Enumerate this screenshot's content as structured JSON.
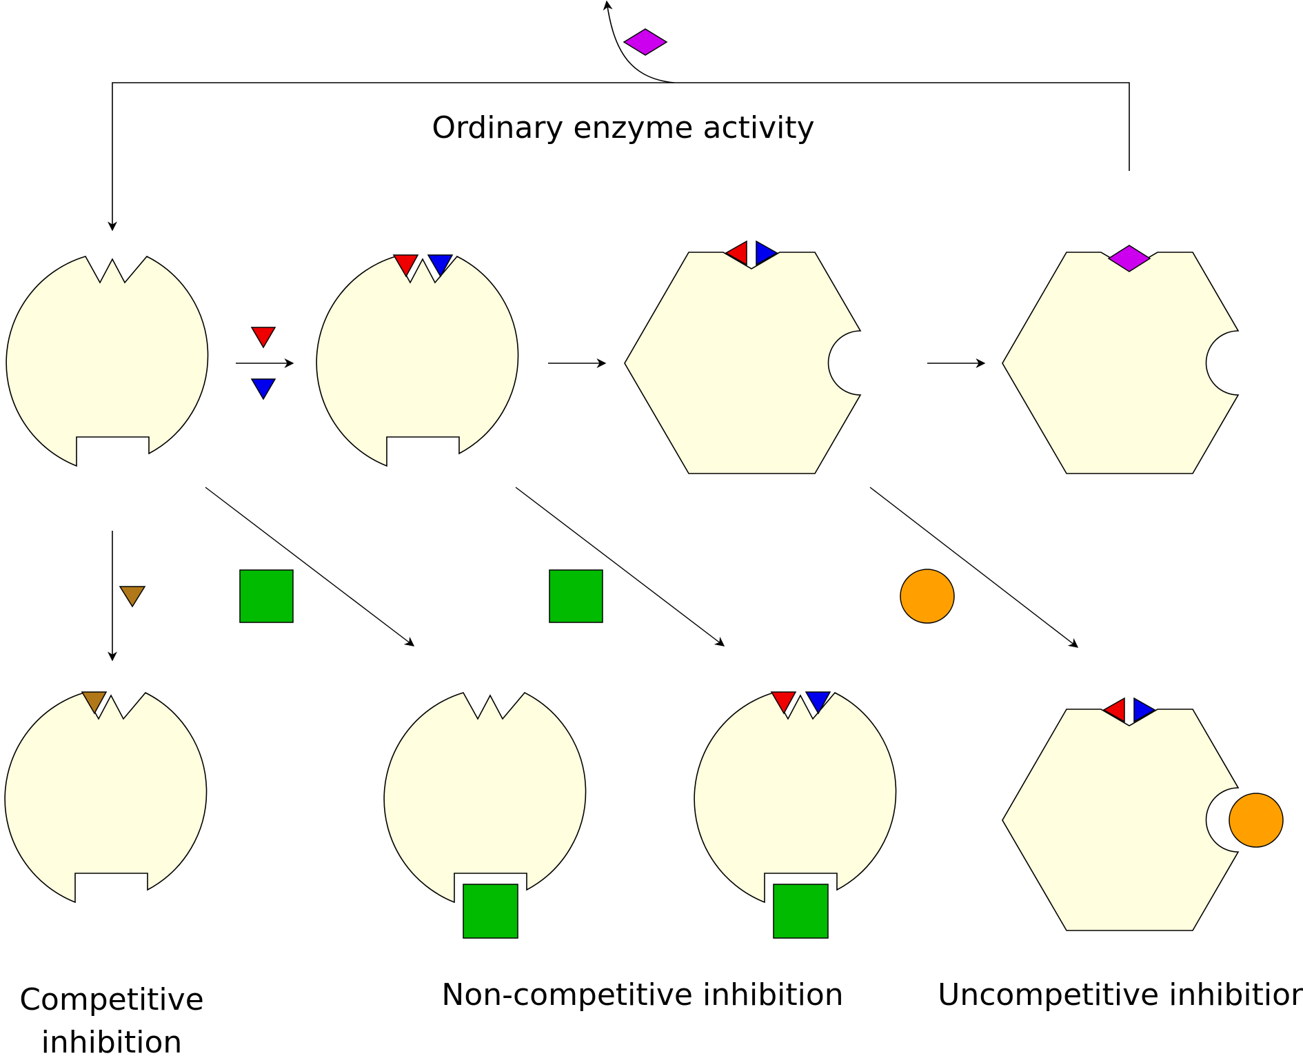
{
  "labels": {
    "ordinary": "Ordinary enzyme activity",
    "competitive_line1": "Competitive",
    "competitive_line2": "inhibition",
    "noncompetitive": "Non-competitive inhibition",
    "uncompetitive": "Uncompetitive inhibition"
  },
  "colors": {
    "enzyme_fill": "#FFFEDF",
    "substrate_red": "#EE0000",
    "substrate_blue": "#0000EE",
    "product_purple": "#CC00EE",
    "competitive_inhibitor": "#B07818",
    "noncompetitive_inhibitor": "#00BB00",
    "uncompetitive_inhibitor": "#FFA000",
    "line": "#000000"
  }
}
